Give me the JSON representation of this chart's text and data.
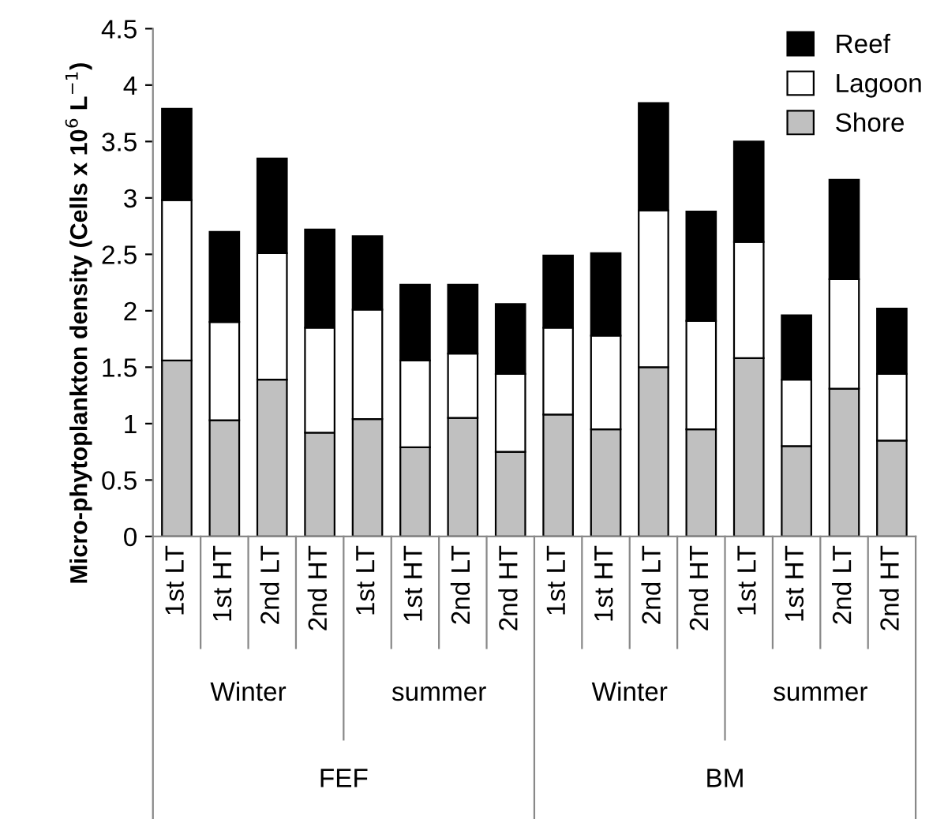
{
  "chart_data": {
    "type": "bar",
    "stacked": true,
    "ylabel": "Micro-phytoplankton density (Cells x 10$^{6}$ L$^{−1}$)",
    "categories": [
      "1st LT",
      "1st HT",
      "2nd LT",
      "2nd HT",
      "1st LT",
      "1st HT",
      "2nd LT",
      "2nd HT",
      "1st LT",
      "1st HT",
      "2nd LT",
      "2nd HT",
      "1st LT",
      "1st HT",
      "2nd LT",
      "2nd HT"
    ],
    "series": [
      {
        "name": "Shore",
        "color": "#c0c0c0",
        "values": [
          1.56,
          1.03,
          1.39,
          0.92,
          1.04,
          0.79,
          1.05,
          0.75,
          1.08,
          0.95,
          1.5,
          0.95,
          1.58,
          0.8,
          1.31,
          0.85
        ]
      },
      {
        "name": "Lagoon",
        "color": "#ffffff",
        "values": [
          1.42,
          0.87,
          1.12,
          0.93,
          0.97,
          0.77,
          0.57,
          0.69,
          0.77,
          0.83,
          1.39,
          0.96,
          1.03,
          0.59,
          0.97,
          0.59
        ]
      },
      {
        "name": "Reef",
        "color": "#000000",
        "values": [
          0.81,
          0.8,
          0.84,
          0.87,
          0.65,
          0.67,
          0.61,
          0.62,
          0.64,
          0.73,
          0.95,
          0.97,
          0.89,
          0.57,
          0.88,
          0.58
        ]
      }
    ],
    "annotations": [
      "Winter",
      "summer",
      "Winter",
      "summer",
      "FEF",
      "BM"
    ],
    "ylim": [
      0,
      4.5
    ],
    "yticks": [
      0,
      0.5,
      1,
      1.5,
      2,
      2.5,
      3,
      3.5,
      4,
      4.5
    ],
    "legend": "top right",
    "grid": false
  }
}
